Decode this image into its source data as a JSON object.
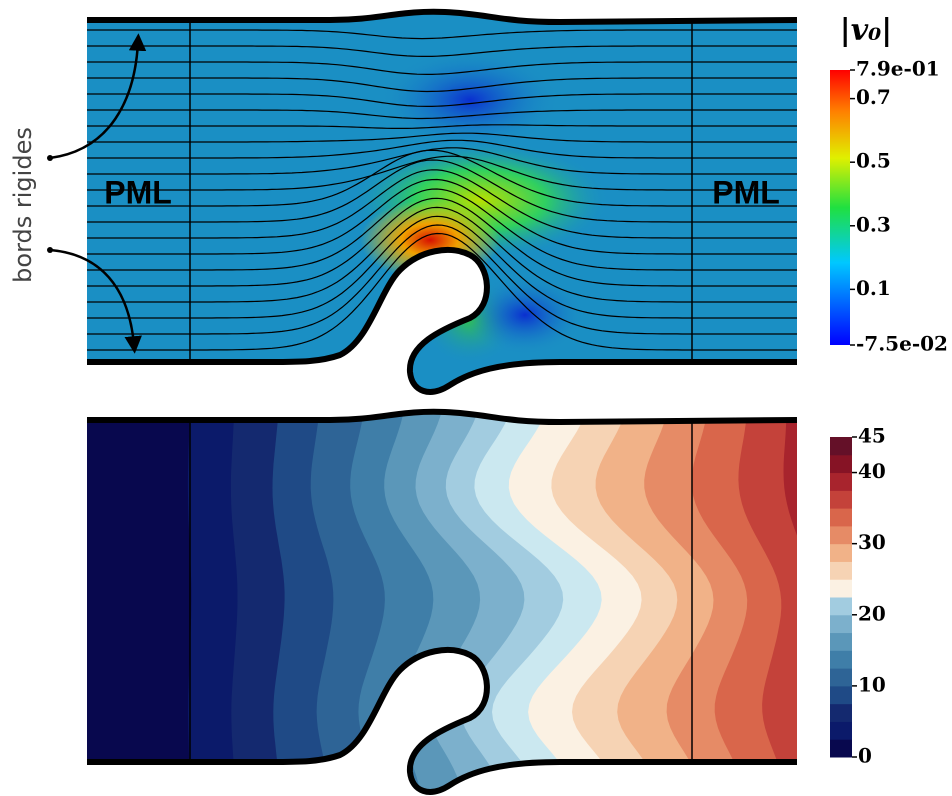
{
  "annotations": {
    "wall_label": "bords rigides",
    "pml_left": "PML",
    "pml_right": "PML"
  },
  "colorbars": [
    {
      "title": "|v₀|",
      "lim": [
        -0.075,
        0.79
      ],
      "ticks": [
        {
          "value": 0.79,
          "label": "7.9e-01"
        },
        0.7,
        0.5,
        0.3,
        0.1,
        {
          "value": -0.075,
          "label": "-7.5e-02"
        }
      ]
    },
    {
      "lim": [
        0,
        45
      ],
      "ticks": [
        0,
        10,
        20,
        30,
        40,
        45
      ]
    }
  ]
}
